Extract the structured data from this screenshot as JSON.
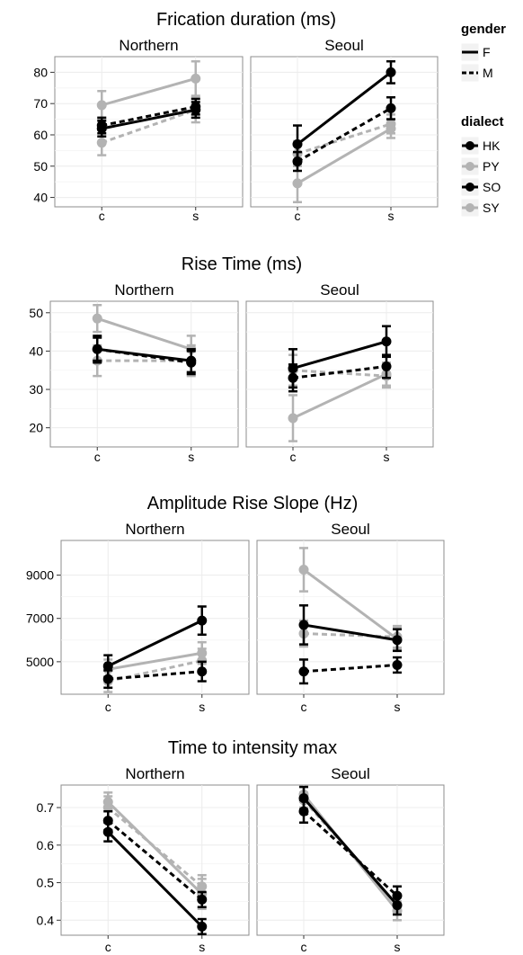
{
  "chart_data": [
    {
      "type": "line",
      "title": "Frication duration (ms)",
      "facets": [
        "Northern",
        "Seoul"
      ],
      "categories": [
        "c",
        "s"
      ],
      "ylim": [
        37,
        85
      ],
      "yticks": [
        40,
        50,
        60,
        70,
        80
      ],
      "grid": true,
      "series": [
        {
          "dialect": "HK",
          "gender": "F",
          "facet": "Northern",
          "values": [
            62,
            68
          ],
          "err": [
            2.5,
            2.5
          ]
        },
        {
          "dialect": "HK",
          "gender": "M",
          "facet": "Northern",
          "values": [
            63,
            69
          ],
          "err": [
            2.5,
            2.5
          ]
        },
        {
          "dialect": "PY",
          "gender": "F",
          "facet": "Northern",
          "values": [
            69.5,
            78
          ],
          "err": [
            4.5,
            5.5
          ]
        },
        {
          "dialect": "PY",
          "gender": "M",
          "facet": "Northern",
          "values": [
            57.5,
            68
          ],
          "err": [
            4,
            4
          ]
        },
        {
          "dialect": "SO",
          "gender": "F",
          "facet": "Seoul",
          "values": [
            57,
            80
          ],
          "err": [
            6,
            3.5
          ]
        },
        {
          "dialect": "SO",
          "gender": "M",
          "facet": "Seoul",
          "values": [
            51.5,
            68.5
          ],
          "err": [
            3,
            3.5
          ]
        },
        {
          "dialect": "SY",
          "gender": "F",
          "facet": "Seoul",
          "values": [
            44.5,
            62
          ],
          "err": [
            6,
            3
          ]
        },
        {
          "dialect": "SY",
          "gender": "M",
          "facet": "Seoul",
          "values": [
            54,
            63.5
          ],
          "err": [
            4,
            3
          ]
        }
      ]
    },
    {
      "type": "line",
      "title": "Rise Time (ms)",
      "facets": [
        "Northern",
        "Seoul"
      ],
      "categories": [
        "c",
        "s"
      ],
      "ylim": [
        15,
        53
      ],
      "yticks": [
        20,
        30,
        40,
        50
      ],
      "grid": true,
      "series": [
        {
          "dialect": "HK",
          "gender": "F",
          "facet": "Northern",
          "values": [
            40.5,
            37.5
          ],
          "err": [
            3,
            3
          ]
        },
        {
          "dialect": "HK",
          "gender": "M",
          "facet": "Northern",
          "values": [
            40.5,
            37
          ],
          "err": [
            3.5,
            3
          ]
        },
        {
          "dialect": "PY",
          "gender": "F",
          "facet": "Northern",
          "values": [
            48.5,
            40.5
          ],
          "err": [
            3.5,
            3.5
          ]
        },
        {
          "dialect": "PY",
          "gender": "M",
          "facet": "Northern",
          "values": [
            37.5,
            37.5
          ],
          "err": [
            4,
            4
          ]
        },
        {
          "dialect": "SO",
          "gender": "F",
          "facet": "Seoul",
          "values": [
            35.5,
            42.5
          ],
          "err": [
            5,
            4
          ]
        },
        {
          "dialect": "SO",
          "gender": "M",
          "facet": "Seoul",
          "values": [
            33,
            36
          ],
          "err": [
            3.5,
            3
          ]
        },
        {
          "dialect": "SY",
          "gender": "F",
          "facet": "Seoul",
          "values": [
            22.5,
            34
          ],
          "err": [
            6,
            3
          ]
        },
        {
          "dialect": "SY",
          "gender": "M",
          "facet": "Seoul",
          "values": [
            35,
            33.5
          ],
          "err": [
            4,
            3
          ]
        }
      ]
    },
    {
      "type": "line",
      "title": "Amplitude Rise Slope (Hz)",
      "facets": [
        "Northern",
        "Seoul"
      ],
      "categories": [
        "c",
        "s"
      ],
      "ylim": [
        3500,
        10600
      ],
      "yticks": [
        5000,
        7000,
        9000
      ],
      "grid": true,
      "series": [
        {
          "dialect": "HK",
          "gender": "F",
          "facet": "Northern",
          "values": [
            4800,
            6900
          ],
          "err": [
            500,
            650
          ]
        },
        {
          "dialect": "HK",
          "gender": "M",
          "facet": "Northern",
          "values": [
            4200,
            4550
          ],
          "err": [
            400,
            450
          ]
        },
        {
          "dialect": "PY",
          "gender": "F",
          "facet": "Northern",
          "values": [
            4650,
            5400
          ],
          "err": [
            450,
            500
          ]
        },
        {
          "dialect": "PY",
          "gender": "M",
          "facet": "Northern",
          "values": [
            4100,
            5050
          ],
          "err": [
            500,
            550
          ]
        },
        {
          "dialect": "SO",
          "gender": "F",
          "facet": "Seoul",
          "values": [
            6700,
            6000
          ],
          "err": [
            900,
            500
          ]
        },
        {
          "dialect": "SO",
          "gender": "M",
          "facet": "Seoul",
          "values": [
            4550,
            4850
          ],
          "err": [
            550,
            350
          ]
        },
        {
          "dialect": "SY",
          "gender": "F",
          "facet": "Seoul",
          "values": [
            9250,
            6050
          ],
          "err": [
            1000,
            500
          ]
        },
        {
          "dialect": "SY",
          "gender": "M",
          "facet": "Seoul",
          "values": [
            6300,
            6150
          ],
          "err": [
            600,
            500
          ]
        }
      ]
    },
    {
      "type": "line",
      "title": "Time to intensity max",
      "facets": [
        "Northern",
        "Seoul"
      ],
      "categories": [
        "c",
        "s"
      ],
      "ylim": [
        0.36,
        0.76
      ],
      "yticks": [
        0.4,
        0.5,
        0.6,
        0.7
      ],
      "grid": true,
      "series": [
        {
          "dialect": "HK",
          "gender": "F",
          "facet": "Northern",
          "values": [
            0.635,
            0.383
          ],
          "err": [
            0.025,
            0.02
          ]
        },
        {
          "dialect": "HK",
          "gender": "M",
          "facet": "Northern",
          "values": [
            0.665,
            0.455
          ],
          "err": [
            0.025,
            0.02
          ]
        },
        {
          "dialect": "PY",
          "gender": "F",
          "facet": "Northern",
          "values": [
            0.715,
            0.47
          ],
          "err": [
            0.025,
            0.04
          ]
        },
        {
          "dialect": "PY",
          "gender": "M",
          "facet": "Northern",
          "values": [
            0.7,
            0.49
          ],
          "err": [
            0.03,
            0.03
          ]
        },
        {
          "dialect": "SO",
          "gender": "F",
          "facet": "Seoul",
          "values": [
            0.725,
            0.44
          ],
          "err": [
            0.03,
            0.025
          ]
        },
        {
          "dialect": "SO",
          "gender": "M",
          "facet": "Seoul",
          "values": [
            0.69,
            0.465
          ],
          "err": [
            0.03,
            0.025
          ]
        },
        {
          "dialect": "SY",
          "gender": "F",
          "facet": "Seoul",
          "values": [
            0.735,
            0.425
          ],
          "err": [
            0.02,
            0.025
          ]
        },
        {
          "dialect": "SY",
          "gender": "M",
          "facet": "Seoul",
          "values": [
            0.72,
            0.44
          ],
          "err": [
            0.02,
            0.02
          ]
        }
      ]
    }
  ],
  "legend": {
    "gender_title": "gender",
    "gender_items": [
      {
        "label": "F",
        "dash": "solid"
      },
      {
        "label": "M",
        "dash": "dashed"
      }
    ],
    "dialect_title": "dialect",
    "dialect_items": [
      {
        "label": "HK",
        "color": "#000000"
      },
      {
        "label": "PY",
        "color": "#b3b3b3"
      },
      {
        "label": "SO",
        "color": "#000000"
      },
      {
        "label": "SY",
        "color": "#b3b3b3"
      }
    ]
  },
  "colors": {
    "black": "#000000",
    "grey": "#b3b3b3",
    "panel_border": "#8c8c8c",
    "grid": "#ececec"
  }
}
